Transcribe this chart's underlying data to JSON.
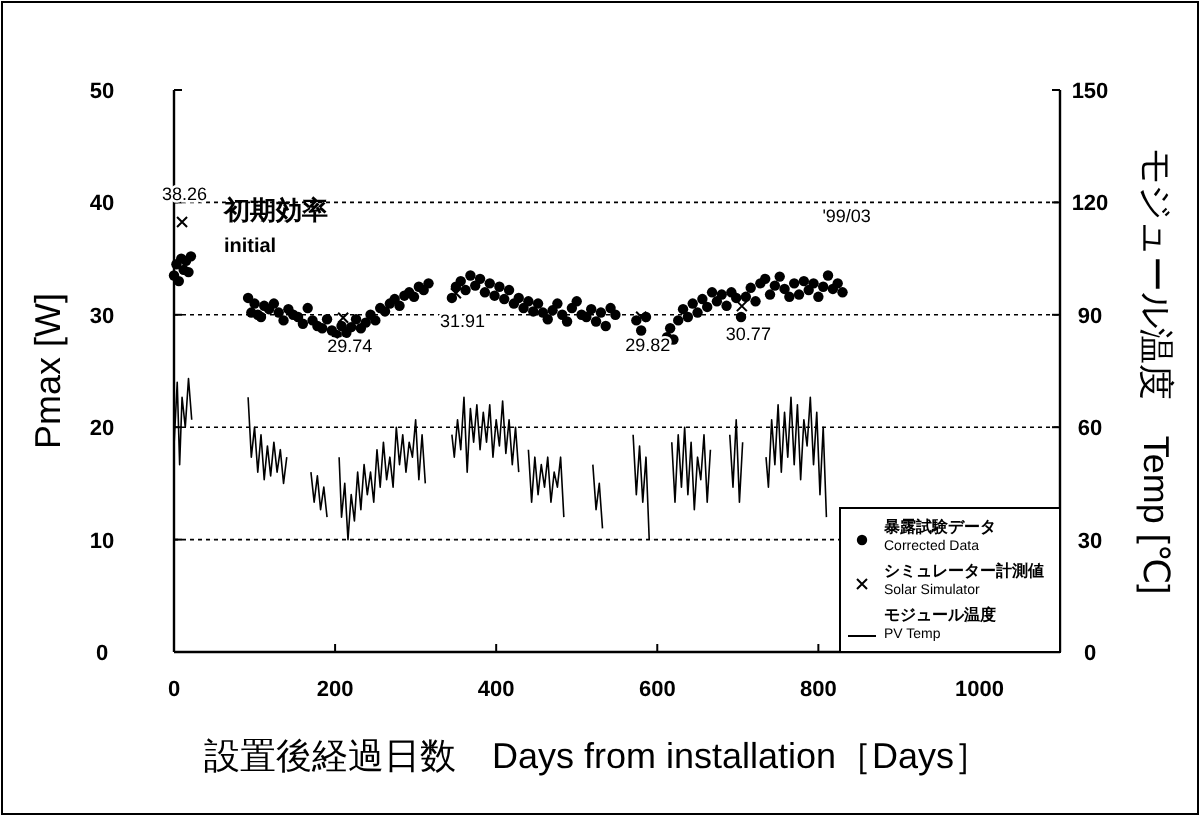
{
  "chart_data": {
    "type": "scatter",
    "xlabel": "設置後経過日数　Days from installation［Days］",
    "ylabel": "Pmax [W]",
    "y2label": "モジュール温度　Temp [℃]",
    "xlim": [
      0,
      1100
    ],
    "xticks": [
      0,
      200,
      400,
      600,
      800,
      1000
    ],
    "ylim": [
      0,
      50
    ],
    "yticks": [
      0,
      10,
      20,
      30,
      40,
      50
    ],
    "y2lim": [
      0,
      150
    ],
    "y2ticks": [
      0,
      30,
      60,
      90,
      120,
      150
    ],
    "grid": "y",
    "legend": "bottom right",
    "annotations": [
      "初期効率",
      "initial",
      "'99/03"
    ],
    "series": [
      {
        "name": "暴露試験データ\nCorrected Data",
        "marker": "circle",
        "color": "#000000",
        "x": [
          0,
          3,
          6,
          9,
          12,
          15,
          18,
          21,
          92,
          96,
          100,
          104,
          108,
          112,
          118,
          124,
          130,
          136,
          142,
          148,
          154,
          160,
          166,
          172,
          178,
          184,
          190,
          196,
          202,
          208,
          214,
          220,
          226,
          232,
          238,
          244,
          250,
          256,
          262,
          268,
          274,
          280,
          286,
          292,
          298,
          304,
          310,
          316,
          345,
          350,
          356,
          362,
          368,
          374,
          380,
          386,
          392,
          398,
          404,
          410,
          416,
          422,
          428,
          434,
          440,
          446,
          452,
          458,
          464,
          470,
          476,
          482,
          488,
          494,
          500,
          506,
          512,
          518,
          524,
          530,
          536,
          542,
          548,
          574,
          580,
          586,
          612,
          616,
          620,
          626,
          632,
          638,
          644,
          650,
          656,
          662,
          668,
          674,
          680,
          686,
          692,
          698,
          704,
          710,
          716,
          722,
          728,
          734,
          740,
          746,
          752,
          758,
          764,
          770,
          776,
          782,
          788,
          794,
          800,
          806,
          812,
          818,
          824,
          830
        ],
        "values": [
          33.5,
          34.5,
          33,
          35,
          34,
          34.8,
          33.8,
          35.2,
          31.5,
          30.2,
          31,
          30,
          29.8,
          30.8,
          30.5,
          31,
          30.2,
          29.5,
          30.5,
          30,
          29.8,
          29.2,
          30.6,
          29.5,
          29,
          28.8,
          29.6,
          28.6,
          28.2,
          29,
          28.4,
          28.9,
          29.6,
          28.8,
          29.3,
          30,
          29.5,
          30.6,
          30.3,
          31,
          31.4,
          30.8,
          31.7,
          32,
          31.6,
          32.5,
          32.2,
          32.8,
          31.5,
          32.5,
          33,
          32.2,
          33.5,
          32.6,
          33.2,
          32,
          32.8,
          31.7,
          32.5,
          31.4,
          32.2,
          31,
          31.5,
          30.6,
          31.2,
          30.3,
          31,
          30.2,
          29.6,
          30.4,
          31,
          30,
          29.4,
          30.6,
          31.2,
          30,
          29.8,
          30.5,
          29.4,
          30.2,
          29,
          30.6,
          30,
          29.5,
          28.6,
          29.8,
          28,
          28.8,
          27.8,
          29.5,
          30.5,
          29.8,
          31,
          30.2,
          31.4,
          30.7,
          32,
          31.2,
          31.8,
          30.8,
          32,
          31.5,
          29.8,
          31.6,
          32.4,
          31.2,
          32.8,
          33.2,
          31.8,
          32.6,
          33.4,
          32.3,
          31.6,
          32.8,
          31.8,
          33,
          32.2,
          32.8,
          31.6,
          32.5,
          33.5,
          32.3,
          32.8,
          32
        ]
      },
      {
        "name": "シミュレーター計測値\nSolar Simulator",
        "type": "scatter",
        "marker": "cross",
        "color": "#000000",
        "x": [
          10,
          210,
          350,
          580,
          705
        ],
        "values": [
          38.26,
          29.74,
          31.91,
          29.82,
          30.77
        ],
        "value_labels": [
          "38.26",
          "29.74",
          "31.91",
          "29.82",
          "30.77"
        ]
      },
      {
        "name": "モジュール温度\nPV Temp",
        "type": "line",
        "axis": "y2",
        "color": "#000000",
        "x": [
          0,
          4,
          7,
          10,
          14,
          18,
          22,
          50,
          92,
          96,
          100,
          104,
          108,
          112,
          116,
          120,
          124,
          128,
          132,
          136,
          140,
          155,
          170,
          174,
          178,
          182,
          186,
          190,
          198,
          205,
          208,
          212,
          216,
          220,
          224,
          228,
          232,
          236,
          240,
          244,
          248,
          252,
          256,
          260,
          264,
          268,
          272,
          276,
          280,
          284,
          288,
          292,
          296,
          300,
          304,
          308,
          312,
          330,
          345,
          348,
          352,
          356,
          360,
          364,
          368,
          372,
          376,
          380,
          384,
          388,
          392,
          396,
          400,
          404,
          408,
          412,
          416,
          420,
          424,
          428,
          434,
          440,
          444,
          448,
          452,
          456,
          460,
          464,
          468,
          472,
          476,
          480,
          484,
          500,
          520,
          524,
          528,
          532,
          550,
          570,
          574,
          578,
          582,
          586,
          590,
          605,
          618,
          622,
          626,
          630,
          634,
          638,
          642,
          646,
          650,
          654,
          658,
          662,
          666,
          680,
          690,
          694,
          698,
          702,
          706,
          720,
          735,
          738,
          742,
          746,
          750,
          754,
          758,
          762,
          766,
          770,
          774,
          778,
          782,
          786,
          790,
          794,
          798,
          802,
          806,
          810
        ],
        "values": [
          55,
          72,
          50,
          68,
          60,
          73,
          62,
          null,
          68,
          52,
          60,
          48,
          58,
          46,
          55,
          47,
          56,
          48,
          54,
          45,
          52,
          null,
          48,
          40,
          47,
          38,
          44,
          36,
          null,
          52,
          36,
          45,
          30,
          42,
          35,
          48,
          38,
          50,
          42,
          48,
          40,
          54,
          44,
          56,
          46,
          52,
          44,
          60,
          50,
          58,
          48,
          56,
          52,
          62,
          46,
          58,
          45,
          null,
          58,
          52,
          62,
          54,
          68,
          48,
          65,
          56,
          66,
          54,
          64,
          56,
          66,
          52,
          62,
          55,
          67,
          53,
          62,
          50,
          60,
          48,
          null,
          54,
          40,
          52,
          42,
          50,
          44,
          52,
          40,
          48,
          44,
          52,
          36,
          null,
          50,
          38,
          45,
          33,
          null,
          58,
          42,
          55,
          40,
          52,
          30,
          null,
          56,
          40,
          58,
          44,
          60,
          42,
          56,
          38,
          52,
          46,
          58,
          40,
          54,
          null,
          58,
          44,
          62,
          40,
          56,
          null,
          52,
          44,
          62,
          50,
          66,
          48,
          64,
          52,
          68,
          50,
          66,
          46,
          62,
          55,
          68,
          50,
          64,
          42,
          60,
          36
        ]
      }
    ]
  }
}
